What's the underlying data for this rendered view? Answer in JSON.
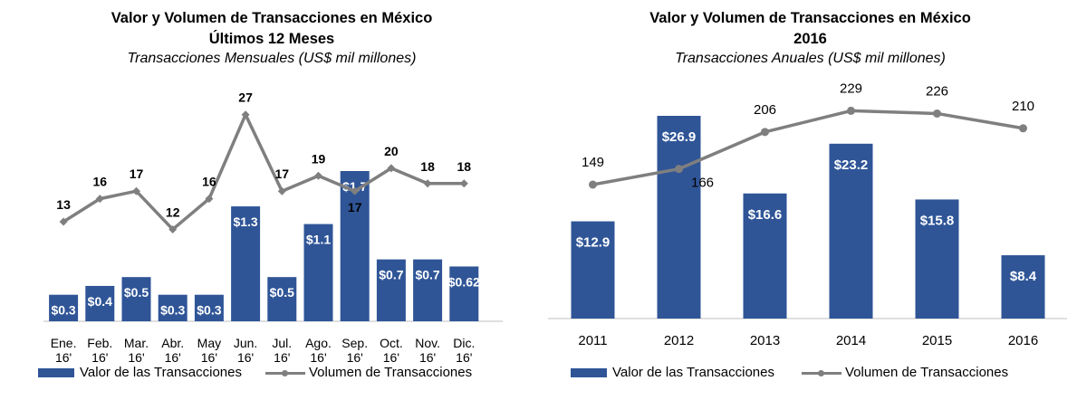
{
  "colors": {
    "bar": "#2f5597",
    "line": "#7f7f7f",
    "axis": "#bfbfbf"
  },
  "left": {
    "title": "Valor y Volumen de Transacciones en México",
    "title2": "Últimos 12 Meses",
    "subtitle": "Transacciones Mensuales (US$ mil millones)",
    "legend_bar": "Valor de las Transacciones",
    "legend_line": "Volumen de Transacciones"
  },
  "right": {
    "title": "Valor y Volumen de Transacciones en México",
    "title2": "2016",
    "subtitle": "Transacciones Anuales (US$ mil millones)",
    "legend_bar": "Valor de las Transacciones",
    "legend_line": "Volumen de Transacciones"
  },
  "chart_data": [
    {
      "type": "bar+line",
      "title": "Valor y Volumen de Transacciones en México",
      "subtitle": "Últimos 12 Meses — Transacciones Mensuales (US$ mil millones)",
      "categories": [
        [
          "Ene.",
          "16'"
        ],
        [
          "Feb.",
          "16'"
        ],
        [
          "Mar.",
          "16'"
        ],
        [
          "Abr.",
          "16'"
        ],
        [
          "May",
          "16'"
        ],
        [
          "Jun.",
          "16'"
        ],
        [
          "Jul.",
          "16'"
        ],
        [
          "Ago.",
          "16'"
        ],
        [
          "Sep.",
          "16'"
        ],
        [
          "Oct.",
          "16'"
        ],
        [
          "Nov.",
          "16'"
        ],
        [
          "Dic.",
          "16'"
        ]
      ],
      "series": [
        {
          "name": "Valor de las Transacciones",
          "type": "bar",
          "values": [
            0.3,
            0.4,
            0.5,
            0.3,
            0.3,
            1.3,
            0.5,
            1.1,
            1.7,
            0.7,
            0.7,
            0.62
          ],
          "labels": [
            "$0.3",
            "$0.4",
            "$0.5",
            "$0.3",
            "$0.3",
            "$1.3",
            "$0.5",
            "$1.1",
            "$1.7",
            "$0.7",
            "$0.7",
            "$0.62"
          ]
        },
        {
          "name": "Volumen de Transacciones",
          "type": "line",
          "values": [
            13,
            16,
            17,
            12,
            16,
            27,
            17,
            19,
            17,
            20,
            18,
            18
          ]
        }
      ],
      "legend": "bottom"
    },
    {
      "type": "bar+line",
      "title": "Valor y Volumen de Transacciones en México",
      "subtitle": "2016 — Transacciones Anuales (US$ mil millones)",
      "categories": [
        "2011",
        "2012",
        "2013",
        "2014",
        "2015",
        "2016"
      ],
      "series": [
        {
          "name": "Valor de las Transacciones",
          "type": "bar",
          "values": [
            12.9,
            26.9,
            16.6,
            23.2,
            15.8,
            8.4
          ],
          "labels": [
            "$12.9",
            "$26.9",
            "$16.6",
            "$23.2",
            "$15.8",
            "$8.4"
          ]
        },
        {
          "name": "Volumen de Transacciones",
          "type": "line",
          "values": [
            149,
            166,
            206,
            229,
            226,
            210
          ]
        }
      ],
      "legend": "bottom"
    }
  ]
}
